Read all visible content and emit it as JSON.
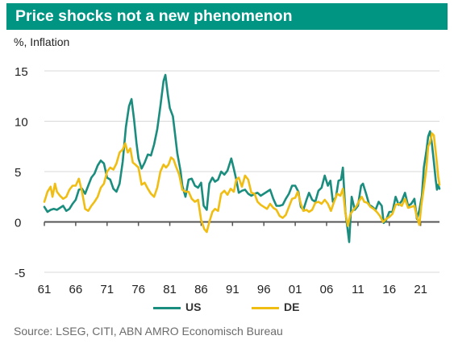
{
  "chart_data": {
    "type": "line",
    "title": "Price shocks not a new phenomenon",
    "ylabel": "%, Inflation",
    "source": "Source: LSEG, CITI, ABN AMRO Economisch Bureau",
    "xlim": [
      1961,
      2024
    ],
    "ylim": [
      -5,
      15
    ],
    "yticks": [
      "15",
      "10",
      "5",
      "0",
      "-5"
    ],
    "xticks": [
      "61",
      "66",
      "71",
      "76",
      "81",
      "86",
      "91",
      "96",
      "01",
      "06",
      "11",
      "16",
      "21"
    ],
    "legend_position": "bottom",
    "grid": "horizontal",
    "series": [
      {
        "name": "US",
        "color": "#1a8d7e",
        "points": [
          [
            1961.0,
            1.5
          ],
          [
            1961.5,
            1.0
          ],
          [
            1962.0,
            1.2
          ],
          [
            1962.5,
            1.3
          ],
          [
            1963.0,
            1.2
          ],
          [
            1963.5,
            1.4
          ],
          [
            1964.0,
            1.6
          ],
          [
            1964.5,
            1.1
          ],
          [
            1965.0,
            1.3
          ],
          [
            1965.5,
            1.8
          ],
          [
            1966.0,
            2.2
          ],
          [
            1966.5,
            3.2
          ],
          [
            1967.0,
            3.3
          ],
          [
            1967.5,
            2.8
          ],
          [
            1968.0,
            3.6
          ],
          [
            1968.5,
            4.4
          ],
          [
            1969.0,
            4.8
          ],
          [
            1969.5,
            5.6
          ],
          [
            1970.0,
            6.1
          ],
          [
            1970.5,
            5.8
          ],
          [
            1971.0,
            4.4
          ],
          [
            1971.5,
            4.2
          ],
          [
            1972.0,
            3.3
          ],
          [
            1972.5,
            3.0
          ],
          [
            1973.0,
            3.8
          ],
          [
            1973.5,
            6.0
          ],
          [
            1974.0,
            9.4
          ],
          [
            1974.5,
            11.5
          ],
          [
            1974.9,
            12.2
          ],
          [
            1975.3,
            10.2
          ],
          [
            1975.7,
            7.8
          ],
          [
            1976.0,
            6.3
          ],
          [
            1976.5,
            5.3
          ],
          [
            1977.0,
            5.9
          ],
          [
            1977.5,
            6.7
          ],
          [
            1978.0,
            6.6
          ],
          [
            1978.5,
            7.7
          ],
          [
            1979.0,
            9.2
          ],
          [
            1979.5,
            11.5
          ],
          [
            1980.0,
            14.0
          ],
          [
            1980.3,
            14.6
          ],
          [
            1980.7,
            12.6
          ],
          [
            1981.0,
            11.3
          ],
          [
            1981.5,
            10.5
          ],
          [
            1981.8,
            8.9
          ],
          [
            1982.2,
            6.8
          ],
          [
            1982.7,
            5.1
          ],
          [
            1983.0,
            3.6
          ],
          [
            1983.5,
            2.5
          ],
          [
            1984.0,
            4.2
          ],
          [
            1984.5,
            4.3
          ],
          [
            1985.0,
            3.6
          ],
          [
            1985.5,
            3.4
          ],
          [
            1986.0,
            3.9
          ],
          [
            1986.4,
            1.6
          ],
          [
            1986.9,
            1.2
          ],
          [
            1987.3,
            3.8
          ],
          [
            1987.8,
            4.4
          ],
          [
            1988.2,
            4.0
          ],
          [
            1988.7,
            4.2
          ],
          [
            1989.2,
            5.0
          ],
          [
            1989.7,
            4.7
          ],
          [
            1990.2,
            5.1
          ],
          [
            1990.8,
            6.3
          ],
          [
            1991.2,
            5.3
          ],
          [
            1991.6,
            4.2
          ],
          [
            1992.0,
            2.9
          ],
          [
            1992.5,
            3.1
          ],
          [
            1993.0,
            3.2
          ],
          [
            1993.5,
            2.8
          ],
          [
            1994.0,
            2.6
          ],
          [
            1994.5,
            2.8
          ],
          [
            1995.0,
            2.9
          ],
          [
            1995.5,
            2.6
          ],
          [
            1996.0,
            2.8
          ],
          [
            1996.5,
            3.0
          ],
          [
            1997.0,
            3.2
          ],
          [
            1997.5,
            2.3
          ],
          [
            1998.0,
            1.6
          ],
          [
            1998.5,
            1.6
          ],
          [
            1999.0,
            1.7
          ],
          [
            1999.5,
            2.3
          ],
          [
            2000.0,
            2.8
          ],
          [
            2000.5,
            3.6
          ],
          [
            2001.0,
            3.6
          ],
          [
            2001.5,
            3.0
          ],
          [
            2001.9,
            1.5
          ],
          [
            2002.3,
            1.2
          ],
          [
            2002.8,
            2.2
          ],
          [
            2003.2,
            2.9
          ],
          [
            2003.7,
            2.2
          ],
          [
            2004.2,
            2.0
          ],
          [
            2004.7,
            3.1
          ],
          [
            2005.2,
            3.4
          ],
          [
            2005.7,
            4.6
          ],
          [
            2006.2,
            3.6
          ],
          [
            2006.6,
            4.1
          ],
          [
            2007.0,
            2.0
          ],
          [
            2007.5,
            2.5
          ],
          [
            2007.9,
            4.1
          ],
          [
            2008.3,
            4.2
          ],
          [
            2008.6,
            5.4
          ],
          [
            2009.0,
            1.0
          ],
          [
            2009.3,
            -0.5
          ],
          [
            2009.6,
            -2.0
          ],
          [
            2010.0,
            2.5
          ],
          [
            2010.5,
            1.2
          ],
          [
            2011.0,
            1.6
          ],
          [
            2011.5,
            3.6
          ],
          [
            2011.8,
            3.8
          ],
          [
            2012.3,
            2.8
          ],
          [
            2012.8,
            1.7
          ],
          [
            2013.3,
            1.5
          ],
          [
            2013.8,
            1.2
          ],
          [
            2014.3,
            2.0
          ],
          [
            2014.8,
            1.6
          ],
          [
            2015.1,
            -0.1
          ],
          [
            2015.5,
            0.2
          ],
          [
            2016.0,
            1.0
          ],
          [
            2016.5,
            1.0
          ],
          [
            2017.0,
            2.5
          ],
          [
            2017.5,
            1.7
          ],
          [
            2018.0,
            2.1
          ],
          [
            2018.5,
            2.9
          ],
          [
            2019.0,
            1.6
          ],
          [
            2019.5,
            1.8
          ],
          [
            2020.0,
            2.3
          ],
          [
            2020.4,
            0.3
          ],
          [
            2020.8,
            1.2
          ],
          [
            2021.2,
            2.6
          ],
          [
            2021.5,
            5.4
          ],
          [
            2021.9,
            7.0
          ],
          [
            2022.2,
            8.5
          ],
          [
            2022.5,
            9.0
          ],
          [
            2022.8,
            7.7
          ],
          [
            2023.1,
            6.0
          ],
          [
            2023.4,
            4.2
          ],
          [
            2023.6,
            3.2
          ],
          [
            2023.8,
            3.7
          ],
          [
            2024.0,
            3.3
          ]
        ]
      },
      {
        "name": "DE",
        "color": "#f0bd12",
        "points": [
          [
            1961.0,
            2.0
          ],
          [
            1961.5,
            3.0
          ],
          [
            1962.0,
            3.5
          ],
          [
            1962.3,
            2.5
          ],
          [
            1962.7,
            3.8
          ],
          [
            1963.0,
            3.0
          ],
          [
            1963.5,
            2.6
          ],
          [
            1964.0,
            2.3
          ],
          [
            1964.5,
            2.5
          ],
          [
            1965.0,
            3.2
          ],
          [
            1965.5,
            3.6
          ],
          [
            1966.0,
            3.6
          ],
          [
            1966.5,
            4.3
          ],
          [
            1967.0,
            3.0
          ],
          [
            1967.5,
            1.3
          ],
          [
            1968.0,
            1.1
          ],
          [
            1968.5,
            1.6
          ],
          [
            1969.0,
            2.0
          ],
          [
            1969.5,
            2.5
          ],
          [
            1970.0,
            3.4
          ],
          [
            1970.5,
            3.8
          ],
          [
            1971.0,
            5.0
          ],
          [
            1971.5,
            5.4
          ],
          [
            1972.0,
            5.2
          ],
          [
            1972.5,
            5.8
          ],
          [
            1973.0,
            6.9
          ],
          [
            1973.5,
            7.2
          ],
          [
            1973.9,
            7.8
          ],
          [
            1974.3,
            6.9
          ],
          [
            1974.7,
            7.3
          ],
          [
            1975.1,
            5.9
          ],
          [
            1975.5,
            5.7
          ],
          [
            1976.0,
            5.4
          ],
          [
            1976.5,
            3.7
          ],
          [
            1977.0,
            3.9
          ],
          [
            1977.5,
            3.3
          ],
          [
            1978.0,
            2.8
          ],
          [
            1978.5,
            2.5
          ],
          [
            1979.0,
            3.4
          ],
          [
            1979.5,
            5.0
          ],
          [
            1980.0,
            5.7
          ],
          [
            1980.4,
            5.4
          ],
          [
            1980.8,
            5.7
          ],
          [
            1981.2,
            6.4
          ],
          [
            1981.6,
            6.2
          ],
          [
            1982.0,
            5.5
          ],
          [
            1982.5,
            4.7
          ],
          [
            1983.0,
            3.2
          ],
          [
            1983.5,
            3.0
          ],
          [
            1984.0,
            3.0
          ],
          [
            1984.5,
            2.3
          ],
          [
            1985.0,
            2.0
          ],
          [
            1985.5,
            2.2
          ],
          [
            1986.0,
            0.2
          ],
          [
            1986.5,
            -0.7
          ],
          [
            1986.9,
            -1.0
          ],
          [
            1987.3,
            0.0
          ],
          [
            1987.8,
            1.0
          ],
          [
            1988.2,
            1.3
          ],
          [
            1988.7,
            1.1
          ],
          [
            1989.2,
            2.8
          ],
          [
            1989.7,
            3.1
          ],
          [
            1990.2,
            2.7
          ],
          [
            1990.7,
            3.3
          ],
          [
            1991.2,
            3.0
          ],
          [
            1991.6,
            4.2
          ],
          [
            1992.0,
            4.4
          ],
          [
            1992.5,
            3.5
          ],
          [
            1993.0,
            4.6
          ],
          [
            1993.5,
            4.2
          ],
          [
            1994.0,
            2.9
          ],
          [
            1994.5,
            2.8
          ],
          [
            1995.0,
            2.0
          ],
          [
            1995.5,
            1.7
          ],
          [
            1996.0,
            1.5
          ],
          [
            1996.5,
            1.3
          ],
          [
            1997.0,
            1.8
          ],
          [
            1997.5,
            1.4
          ],
          [
            1998.0,
            1.2
          ],
          [
            1998.5,
            0.6
          ],
          [
            1999.0,
            0.4
          ],
          [
            1999.5,
            0.7
          ],
          [
            2000.0,
            1.5
          ],
          [
            2000.5,
            2.3
          ],
          [
            2001.0,
            2.4
          ],
          [
            2001.4,
            3.0
          ],
          [
            2001.9,
            1.8
          ],
          [
            2002.3,
            1.1
          ],
          [
            2002.8,
            1.2
          ],
          [
            2003.2,
            1.0
          ],
          [
            2003.7,
            1.2
          ],
          [
            2004.2,
            1.9
          ],
          [
            2004.7,
            2.0
          ],
          [
            2005.2,
            1.8
          ],
          [
            2005.7,
            2.2
          ],
          [
            2006.2,
            1.8
          ],
          [
            2006.7,
            1.1
          ],
          [
            2007.2,
            2.0
          ],
          [
            2007.7,
            2.8
          ],
          [
            2008.2,
            2.6
          ],
          [
            2008.6,
            3.3
          ],
          [
            2009.0,
            0.9
          ],
          [
            2009.4,
            -0.4
          ],
          [
            2009.8,
            0.8
          ],
          [
            2010.3,
            1.2
          ],
          [
            2010.8,
            1.6
          ],
          [
            2011.2,
            2.1
          ],
          [
            2011.6,
            2.5
          ],
          [
            2012.0,
            2.0
          ],
          [
            2012.5,
            1.9
          ],
          [
            2013.0,
            1.5
          ],
          [
            2013.5,
            1.3
          ],
          [
            2014.0,
            1.0
          ],
          [
            2014.5,
            0.6
          ],
          [
            2015.0,
            0.0
          ],
          [
            2015.5,
            0.3
          ],
          [
            2016.0,
            0.5
          ],
          [
            2016.5,
            0.8
          ],
          [
            2017.0,
            1.7
          ],
          [
            2017.5,
            1.8
          ],
          [
            2018.0,
            1.6
          ],
          [
            2018.5,
            2.3
          ],
          [
            2019.0,
            1.4
          ],
          [
            2019.5,
            1.5
          ],
          [
            2020.0,
            1.6
          ],
          [
            2020.4,
            0.5
          ],
          [
            2020.8,
            -0.3
          ],
          [
            2021.1,
            1.6
          ],
          [
            2021.5,
            3.4
          ],
          [
            2021.9,
            5.3
          ],
          [
            2022.2,
            7.5
          ],
          [
            2022.5,
            7.9
          ],
          [
            2022.8,
            8.8
          ],
          [
            2023.1,
            8.6
          ],
          [
            2023.5,
            6.4
          ],
          [
            2023.8,
            4.5
          ],
          [
            2024.0,
            3.7
          ]
        ]
      }
    ]
  }
}
